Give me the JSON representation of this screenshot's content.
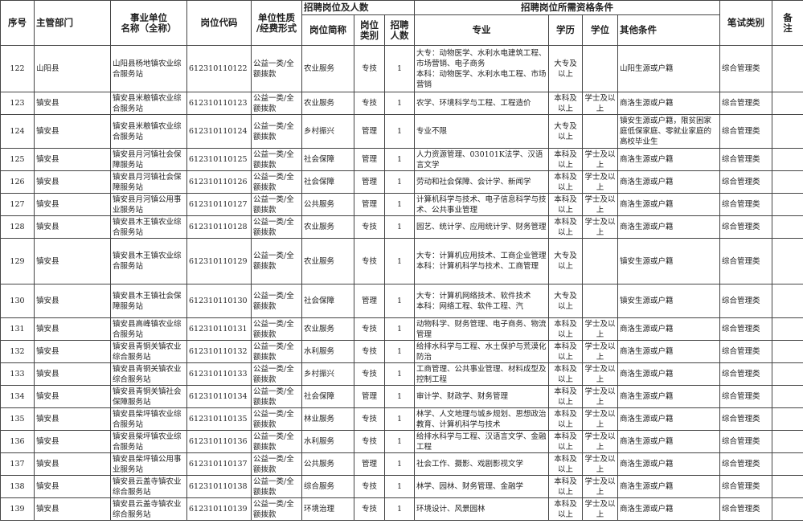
{
  "header": {
    "no": "序号",
    "dept": "主管部门",
    "unit": "事业单位\n名称（全称）",
    "code": "岗位代码",
    "nature": "单位性质\n/经费形式",
    "post_group": "招聘岗位及人数",
    "post": "岗位简称",
    "category": "岗位\n类别",
    "count": "招聘\n人数",
    "req_group": "招聘岗位所需资格条件",
    "major": "专业",
    "education": "学历",
    "degree": "学位",
    "other": "其他条件",
    "exam": "笔试类别",
    "note": "备\n注"
  },
  "rows": [
    {
      "no": 122,
      "dept": "山阳县",
      "unit": "山阳县杨地镇农业综合服务站",
      "code": "612310110122",
      "nature": "公益一类/全额拨款",
      "post": "农业服务",
      "category": "专技",
      "count": 1,
      "major": "大专：动物医学、水利水电建筑工程、市场营销、电子商务\n本科：动物医学、水利水电工程、市场营销",
      "education": "大专及以上",
      "other": "山阳生源或户籍",
      "exam": "综合管理类"
    },
    {
      "no": 123,
      "dept": "镇安县",
      "unit": "镇安县米粮镇农业综合服务站",
      "code": "612310110123",
      "nature": "公益一类/全额拨款",
      "post": "农业服务",
      "category": "专技",
      "count": 1,
      "major": "农学、环境科学与工程、工程造价",
      "education": "本科及以上",
      "degree": "学士及以上",
      "other": "商洛生源或户籍",
      "exam": "综合管理类"
    },
    {
      "no": 124,
      "dept": "镇安县",
      "unit": "镇安县米粮镇农业综合服务站",
      "code": "612310110124",
      "nature": "公益一类/全额拨款",
      "post": "乡村振兴",
      "category": "管理",
      "count": 1,
      "major": "专业不限",
      "education": "大专及以上",
      "other": "镇安生源或户籍，限贫困家庭低保家庭、零就业家庭的高校毕业生",
      "exam": "综合管理类"
    },
    {
      "no": 125,
      "dept": "镇安县",
      "unit": "镇安县月河镇社会保障服务站",
      "code": "612310110125",
      "nature": "公益一类/全额拨款",
      "post": "社会保障",
      "category": "管理",
      "count": 1,
      "major": "人力资源管理、030101K法学、汉语言文学",
      "education": "本科及以上",
      "degree": "学士及以上",
      "other": "商洛生源或户籍",
      "exam": "综合管理类"
    },
    {
      "no": 126,
      "dept": "镇安县",
      "unit": "镇安县月河镇社会保障服务站",
      "code": "612310110126",
      "nature": "公益一类/全额拨款",
      "post": "社会保障",
      "category": "管理",
      "count": 1,
      "major": "劳动和社会保障、会计学、新闻学",
      "education": "本科及以上",
      "degree": "学士及以上",
      "other": "商洛生源或户籍",
      "exam": "综合管理类"
    },
    {
      "no": 127,
      "dept": "镇安县",
      "unit": "镇安县月河镇公用事业服务站",
      "code": "612310110127",
      "nature": "公益一类/全额拨款",
      "post": "公共服务",
      "category": "管理",
      "count": 1,
      "major": "计算机科学与技术、电子信息科学与技术、公共事业管理",
      "education": "本科及以上",
      "degree": "学士及以上",
      "other": "商洛生源或户籍",
      "exam": "综合管理类"
    },
    {
      "no": 128,
      "dept": "镇安县",
      "unit": "镇安县木王镇农业综合服务站",
      "code": "612310110128",
      "nature": "公益一类/全额拨款",
      "post": "农业服务",
      "category": "专技",
      "count": 1,
      "major": "园艺、统计学、应用统计学、财务管理",
      "education": "本科及以上",
      "degree": "学士及以上",
      "other": "商洛生源或户籍",
      "exam": "综合管理类"
    },
    {
      "no": 129,
      "dept": "镇安县",
      "unit": "镇安县木王镇农业综合服务站",
      "code": "612310110129",
      "nature": "公益一类/全额拨款",
      "post": "农业服务",
      "category": "专技",
      "count": 1,
      "major": "大专：计算机应用技术、工商企业管理\n本科：计算机科学与技术、工商管理",
      "education": "大专及以上",
      "other": "镇安生源或户籍",
      "exam": "综合管理类"
    },
    {
      "no": 130,
      "dept": "镇安县",
      "unit": "镇安县木王镇社会保障服务站",
      "code": "612310110130",
      "nature": "公益一类/全额拨款",
      "post": "社会保障",
      "category": "管理",
      "count": 1,
      "major": "大专：计算机网络技术、软件技术\n本科：网络工程、软件工程、汽",
      "education": "大专及以上",
      "other": "镇安生源或户籍",
      "exam": "综合管理类"
    },
    {
      "no": 131,
      "dept": "镇安县",
      "unit": "镇安县高峰镇农业综合服务站",
      "code": "612310110131",
      "nature": "公益一类/全额拨款",
      "post": "农业服务",
      "category": "专技",
      "count": 1,
      "major": "动物科学、财务管理、电子商务、物流管理",
      "education": "本科及以上",
      "degree": "学士及以上",
      "other": "商洛生源或户籍",
      "exam": "综合管理类"
    },
    {
      "no": 132,
      "dept": "镇安县",
      "unit": "镇安县青铜关镇农业综合服务站",
      "code": "612310110132",
      "nature": "公益一类/全额拨款",
      "post": "水利服务",
      "category": "专技",
      "count": 1,
      "major": "给排水科学与工程、水土保护与荒漠化防治",
      "education": "本科及以上",
      "degree": "学士及以上",
      "other": "商洛生源或户籍",
      "exam": "综合管理类"
    },
    {
      "no": 133,
      "dept": "镇安县",
      "unit": "镇安县青铜关镇农业综合服务站",
      "code": "612310110133",
      "nature": "公益一类/全额拨款",
      "post": "乡村振兴",
      "category": "专技",
      "count": 1,
      "major": "工商管理、公共事业管理、材料成型及控制工程",
      "education": "本科及以上",
      "degree": "学士及以上",
      "other": "商洛生源或户籍",
      "exam": "综合管理类"
    },
    {
      "no": 134,
      "dept": "镇安县",
      "unit": "镇安县青铜关镇社会保障服务站",
      "code": "612310110134",
      "nature": "公益一类/全额拨款",
      "post": "社会保障",
      "category": "管理",
      "count": 1,
      "major": "审计学、财政学、财务管理",
      "education": "本科及以上",
      "degree": "学士及以上",
      "other": "商洛生源或户籍",
      "exam": "综合管理类"
    },
    {
      "no": 135,
      "dept": "镇安县",
      "unit": "镇安县柴坪镇农业综合服务站",
      "code": "612310110135",
      "nature": "公益一类/全额拨款",
      "post": "林业服务",
      "category": "专技",
      "count": 1,
      "major": "林学、人文地理与城乡规划、思想政治教育、计算机科学与技术",
      "education": "本科及以上",
      "degree": "学士及以上",
      "other": "商洛生源或户籍",
      "exam": "综合管理类"
    },
    {
      "no": 136,
      "dept": "镇安县",
      "unit": "镇安县柴坪镇农业综合服务站",
      "code": "612310110136",
      "nature": "公益一类/全额拨款",
      "post": "水利服务",
      "category": "专技",
      "count": 1,
      "major": "给排水科学与工程、汉语言文学、金融工程",
      "education": "本科及以上",
      "degree": "学士及以上",
      "other": "商洛生源或户籍",
      "exam": "综合管理类"
    },
    {
      "no": 137,
      "dept": "镇安县",
      "unit": "镇安县柴坪镇公用事业服务站",
      "code": "612310110137",
      "nature": "公益一类/全额拨款",
      "post": "公共服务",
      "category": "管理",
      "count": 1,
      "major": "社会工作、摄影、戏剧影视文学",
      "education": "本科及以上",
      "degree": "学士及以上",
      "other": "商洛生源或户籍",
      "exam": "综合管理类"
    },
    {
      "no": 138,
      "dept": "镇安县",
      "unit": "镇安县云盖寺镇农业综合服务站",
      "code": "612310110138",
      "nature": "公益一类/全额拨款",
      "post": "综合服务",
      "category": "专技",
      "count": 1,
      "major": "林学、园林、财务管理、金融学",
      "education": "本科及以上",
      "degree": "学士及以上",
      "other": "商洛生源或户籍",
      "exam": "综合管理类"
    },
    {
      "no": 139,
      "dept": "镇安县",
      "unit": "镇安县云盖寺镇农业综合服务站",
      "code": "612310110139",
      "nature": "公益一类/全额拨款",
      "post": "环境治理",
      "category": "专技",
      "count": 1,
      "major": "环境设计、风景园林",
      "education": "本科及以上",
      "degree": "学士及以上",
      "other": "商洛生源或户籍",
      "exam": "综合管理类"
    }
  ]
}
